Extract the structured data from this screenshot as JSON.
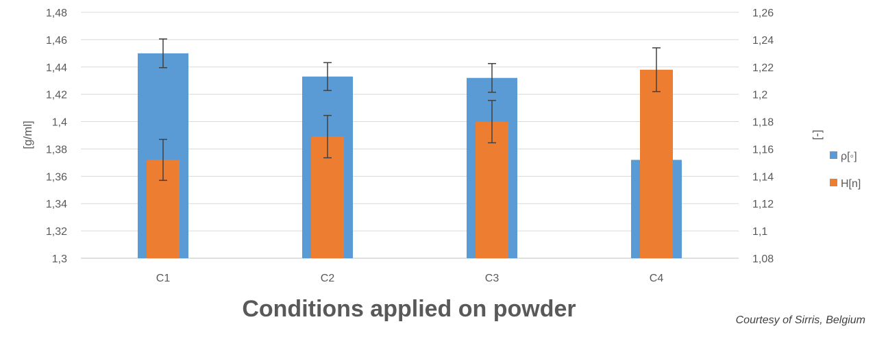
{
  "chart_data": {
    "type": "bar",
    "categories": [
      "C1",
      "C2",
      "C3",
      "C4"
    ],
    "xlabel": "Conditions applied on powder",
    "y_left": {
      "label": "[g/ml]",
      "ylim": [
        1.3,
        1.48
      ],
      "ticks": [
        "1,3",
        "1,32",
        "1,34",
        "1,36",
        "1,38",
        "1,4",
        "1,42",
        "1,44",
        "1,46",
        "1,48"
      ]
    },
    "y_right": {
      "label": "[-]",
      "ylim": [
        1.08,
        1.26
      ],
      "ticks": [
        "1,08",
        "1,1",
        "1,12",
        "1,14",
        "1,16",
        "1,18",
        "1,2",
        "1,22",
        "1,24",
        "1,26"
      ]
    },
    "series": [
      {
        "name": "ρ[◦]",
        "axis": "left",
        "color": "#5b9bd5",
        "values": [
          1.45,
          1.433,
          1.432,
          1.372
        ],
        "error": [
          0.0105,
          0.0102,
          0.0105,
          null
        ]
      },
      {
        "name": "H[n]",
        "axis": "right",
        "color": "#ed7d31",
        "values": [
          1.152,
          1.169,
          1.18,
          1.218
        ],
        "error": [
          0.015,
          0.0155,
          0.0155,
          0.016
        ]
      }
    ],
    "grid": true,
    "legend_position": "right"
  },
  "credit": "Courtesy of Sirris, Belgium"
}
